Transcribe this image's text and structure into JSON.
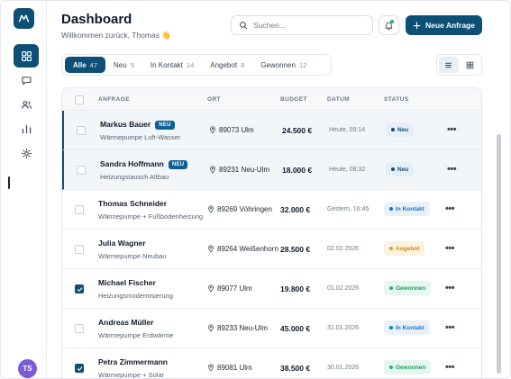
{
  "header": {
    "title": "Dashboard",
    "subtitle": "Willkommen zurück, Thomas 👋",
    "search_placeholder": "Suchen...",
    "new_button": "Neue Anfrage"
  },
  "sidebar": {
    "items": [
      {
        "icon": "dashboard-icon",
        "active": true
      },
      {
        "icon": "chat-icon",
        "active": false
      },
      {
        "icon": "users-icon",
        "active": false
      },
      {
        "icon": "chart-icon",
        "active": false
      },
      {
        "icon": "gear-icon",
        "active": false
      }
    ],
    "avatar_initials": "TS"
  },
  "tabs": [
    {
      "label": "Alle",
      "count": "47",
      "active": true
    },
    {
      "label": "Neu",
      "count": "5",
      "active": false
    },
    {
      "label": "In Kontakt",
      "count": "14",
      "active": false
    },
    {
      "label": "Angebot",
      "count": "8",
      "active": false
    },
    {
      "label": "Gewonnen",
      "count": "12",
      "active": false
    }
  ],
  "table": {
    "columns": [
      "ANFRAGE",
      "ORT",
      "BUDGET",
      "DATUM",
      "STATUS"
    ],
    "rows": [
      {
        "name": "Markus Bauer",
        "badge": "NEU",
        "desc": "Wärmepumpe Luft-Wasser",
        "location": "89073 Ulm",
        "budget": "24.500 €",
        "date": "Heute, 09:14",
        "status": "Neu",
        "status_type": "neu",
        "checked": false,
        "unread": true
      },
      {
        "name": "Sandra Hoffmann",
        "badge": "NEU",
        "desc": "Heizungstausch Altbau",
        "location": "89231 Neu-Ulm",
        "budget": "18.000 €",
        "date": "Heute, 08:32",
        "status": "Neu",
        "status_type": "neu",
        "checked": false,
        "unread": true
      },
      {
        "name": "Thomas Schneider",
        "badge": "",
        "desc": "Wärmepumpe + Fußbodenheizung",
        "location": "89269 Vöhringen",
        "budget": "32.000 €",
        "date": "Gestern, 16:45",
        "status": "In Kontakt",
        "status_type": "kontakt",
        "checked": false,
        "unread": false
      },
      {
        "name": "Julia Wagner",
        "badge": "",
        "desc": "Wärmepumpe Neubau",
        "location": "89264 Weißenhorn",
        "budget": "28.500 €",
        "date": "02.02.2026",
        "status": "Angebot",
        "status_type": "angebot",
        "checked": false,
        "unread": false
      },
      {
        "name": "Michael Fischer",
        "badge": "",
        "desc": "Heizungsmodernisierung",
        "location": "89077 Ulm",
        "budget": "19.800 €",
        "date": "01.02.2026",
        "status": "Gewonnen",
        "status_type": "gewonnen",
        "checked": true,
        "unread": false
      },
      {
        "name": "Andreas Müller",
        "badge": "",
        "desc": "Wärmepumpe Erdwärme",
        "location": "89233 Neu-Ulm",
        "budget": "45.000 €",
        "date": "31.01.2026",
        "status": "In Kontakt",
        "status_type": "kontakt",
        "checked": false,
        "unread": false
      },
      {
        "name": "Petra Zimmermann",
        "badge": "",
        "desc": "Wärmepumpe + Solar",
        "location": "89081 Ulm",
        "budget": "38.500 €",
        "date": "30.01.2026",
        "status": "Gewonnen",
        "status_type": "gewonnen",
        "checked": true,
        "unread": false
      }
    ]
  },
  "status_colors": {
    "neu": {
      "bg": "#e6eef6",
      "fg": "#0e4f75",
      "dot": "#0e4f75"
    },
    "kontakt": {
      "bg": "#e6f1fb",
      "fg": "#1c73c4",
      "dot": "#1c73c4"
    },
    "angebot": {
      "bg": "#fdf3e0",
      "fg": "#d4870f",
      "dot": "#e69a1c"
    },
    "gewonnen": {
      "bg": "#e5f7ee",
      "fg": "#1f9d63",
      "dot": "#22b573"
    }
  },
  "colors": {
    "accent": "#0e4f75",
    "avatar": "#7c5cd6"
  }
}
